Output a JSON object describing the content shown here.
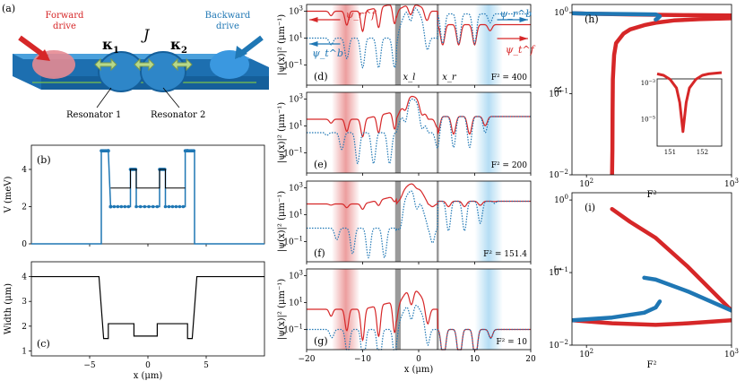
{
  "colors": {
    "red": "#d62728",
    "blue": "#1f77b4",
    "device": "#2e86c8",
    "arrow": "#b7d98a",
    "gray": "#9a9a9a"
  },
  "schematic": {
    "panel": "(a)",
    "forward_label_1": "Forward",
    "forward_label_2": "drive",
    "backward_label_1": "Backward",
    "backward_label_2": "drive",
    "kappa1": "κ",
    "kappa1_sub": "1",
    "coupling": "J",
    "kappa2": "κ",
    "kappa2_sub": "2",
    "res1": "Resonator 1",
    "res2": "Resonator 2"
  },
  "chart_data": [
    {
      "type": "line",
      "panel": "(b)",
      "ylabel": "V (meV)",
      "xlim": [
        -10,
        10
      ],
      "ylim": [
        0,
        5.3
      ],
      "yticks": [
        "0",
        "2",
        "4"
      ],
      "series": [
        {
          "name": "",
          "color": "blue",
          "style": "markers",
          "x": [
            -10,
            -4,
            -4,
            -3.4,
            -3.4,
            -3.2,
            -3.2,
            -1.5,
            -1.5,
            -1,
            -1,
            1,
            1,
            1.5,
            1.5,
            3.2,
            3.2,
            3.4,
            3.4,
            4,
            4,
            10
          ],
          "y": [
            0,
            0,
            5,
            5,
            5,
            2,
            2,
            2,
            4,
            4,
            2,
            2,
            4,
            4,
            2,
            2,
            5,
            5,
            5,
            5,
            0,
            0
          ]
        },
        {
          "name": "",
          "color": "black",
          "style": "solid",
          "x": [
            -3.2,
            -1.5,
            -1.5,
            -1,
            -1,
            1,
            1,
            1.5,
            1.5,
            3.2
          ],
          "y": [
            3,
            3,
            4,
            4,
            3,
            3,
            4,
            4,
            3,
            3
          ]
        }
      ]
    },
    {
      "type": "line",
      "panel": "(c)",
      "ylabel": "Width (μm)",
      "xlabel": "x (μm)",
      "xlim": [
        -10,
        10
      ],
      "ylim": [
        0.8,
        4.6
      ],
      "xticks": [
        "−5",
        "0",
        "5"
      ],
      "yticks": [
        "1",
        "2",
        "3",
        "4"
      ],
      "series": [
        {
          "name": "",
          "color": "black",
          "x": [
            -10,
            -4.2,
            -3.8,
            -3.4,
            -3.4,
            -2.8,
            -2.8,
            -1.2,
            -1.2,
            0.8,
            0.8,
            1.5,
            1.5,
            3.4,
            3.4,
            3.8,
            4.2,
            10
          ],
          "y": [
            4,
            4,
            1.5,
            1.5,
            2.1,
            2.1,
            2.1,
            2.1,
            1.6,
            1.6,
            2.1,
            2.1,
            2.1,
            2.1,
            1.5,
            1.5,
            4,
            4
          ]
        }
      ]
    },
    {
      "type": "line",
      "panel": "(d)",
      "ylabel": "|ψ(x)|² (μm⁻¹)",
      "ylog": true,
      "xlim": [
        -20,
        20
      ],
      "ylim_exp": [
        -2.5,
        3.5
      ],
      "yticks": [
        "10^{-1}",
        "10^{1}",
        "10^{3}"
      ],
      "annotation": "F² = 400",
      "labels": {
        "psi_r_f": "ψ_r^f",
        "psi_t_b": "ψ_t^b",
        "psi_r_b": "ψ_r^b",
        "psi_t_f": "ψ_t^f",
        "x_l": "x_l",
        "x_r": "x_r"
      },
      "series": [
        {
          "name": "forward",
          "color": "red",
          "style": "solid",
          "left_level": 3,
          "center_peak": 3.5,
          "right_level": 2,
          "osc": 1.5
        },
        {
          "name": "backward",
          "color": "blue",
          "style": "dotted",
          "left_level": 1,
          "center_peak": 3.4,
          "right_level": 2.8,
          "osc": 2.2
        }
      ]
    },
    {
      "type": "line",
      "panel": "(e)",
      "ylabel": "|ψ(x)|² (μm⁻¹)",
      "ylog": true,
      "xlim": [
        -20,
        20
      ],
      "ylim_exp": [
        -2.5,
        3.5
      ],
      "yticks": [
        "10^{-1}",
        "10^{1}",
        "10^{3}"
      ],
      "annotation": "F² = 200",
      "series": [
        {
          "name": "forward",
          "color": "red",
          "style": "solid",
          "left_level": 1.5,
          "center_peak": 3.2,
          "right_level": 1.7,
          "osc": 1.3
        },
        {
          "name": "backward",
          "color": "blue",
          "style": "dotted",
          "left_level": 0.5,
          "center_peak": 3.0,
          "right_level": 1.7,
          "osc": 2.3
        }
      ]
    },
    {
      "type": "line",
      "panel": "(f)",
      "ylabel": "|ψ(x)|² (μm⁻¹)",
      "ylog": true,
      "xlim": [
        -20,
        20
      ],
      "ylim_exp": [
        -2.5,
        3.5
      ],
      "yticks": [
        "10^{-1}",
        "10^{1}",
        "10^{3}"
      ],
      "annotation": "F² = 151.4",
      "series": [
        {
          "name": "forward",
          "color": "red",
          "style": "solid",
          "left_level": 1.8,
          "center_peak": 3.3,
          "right_level": 2.0,
          "osc": 0.4
        },
        {
          "name": "backward",
          "color": "blue",
          "style": "dotted",
          "left_level": 0,
          "center_peak": 2.8,
          "right_level": 2.0,
          "osc": 2.2
        }
      ]
    },
    {
      "type": "line",
      "panel": "(g)",
      "ylabel": "|ψ(x)|² (μm⁻¹)",
      "xlabel": "x (μm)",
      "ylog": true,
      "xlim": [
        -20,
        20
      ],
      "ylim_exp": [
        -2.5,
        3.5
      ],
      "xticks": [
        "−20",
        "−10",
        "0",
        "10",
        "20"
      ],
      "yticks": [
        "10^{-1}",
        "10^{1}",
        "10^{3}"
      ],
      "annotation": "F² = 10",
      "series": [
        {
          "name": "forward",
          "color": "red",
          "style": "solid",
          "left_level": 0.5,
          "center_peak": 2.0,
          "right_level": -1,
          "osc": 2.3
        },
        {
          "name": "backward",
          "color": "blue",
          "style": "dotted",
          "left_level": -1,
          "center_peak": 1.0,
          "right_level": -1,
          "osc": 2.5
        }
      ]
    },
    {
      "type": "line",
      "panel": "(h)",
      "ylabel": "R",
      "xlabel": "F²",
      "xlog": true,
      "ylog": true,
      "xlim_exp": [
        1.9,
        3
      ],
      "ylim_exp": [
        -2,
        0.1
      ],
      "yticks": [
        "10^{-2}",
        "10^{-1}",
        "10^{0}"
      ],
      "xticks": [
        "10^{2}",
        "10^{3}"
      ],
      "series": [
        {
          "name": "",
          "color": "red",
          "x": [
            150,
            151,
            151.4,
            152,
            155,
            160,
            180,
            200,
            250,
            300,
            400,
            600,
            1000
          ],
          "y": [
            0.01,
            0.02,
            0.06,
            0.15,
            0.3,
            0.42,
            0.55,
            0.62,
            0.7,
            0.75,
            0.8,
            0.83,
            0.85
          ]
        },
        {
          "name": "",
          "color": "red",
          "x": [
            80,
            100,
            150,
            200,
            300,
            500,
            1000
          ],
          "y": [
            0.98,
            0.97,
            0.96,
            0.95,
            0.94,
            0.93,
            0.92
          ]
        },
        {
          "name": "",
          "color": "blue",
          "x": [
            80,
            100,
            200,
            300,
            320,
            310,
            300
          ],
          "y": [
            0.98,
            0.97,
            0.96,
            0.95,
            0.9,
            0.85,
            0.82
          ]
        }
      ],
      "inset": {
        "xlim": [
          150.6,
          152.6
        ],
        "ylim_exp": [
          -6.5,
          -2.8
        ],
        "xticks": [
          "151",
          "152"
        ],
        "yticks": [
          "10^{-5}",
          "10^{-3}"
        ],
        "x": [
          150.6,
          150.8,
          151,
          151.2,
          151.3,
          151.4,
          151.5,
          151.6,
          151.8,
          152,
          152.2,
          152.6
        ],
        "y": [
          0.003,
          0.0025,
          0.0015,
          0.0005,
          8e-05,
          2e-06,
          8e-05,
          0.0005,
          0.0015,
          0.0025,
          0.003,
          0.0035
        ]
      }
    },
    {
      "type": "line",
      "panel": "(i)",
      "ylabel": "T",
      "xlabel": "F²",
      "xlog": true,
      "ylog": true,
      "xlim_exp": [
        1.9,
        3
      ],
      "ylim_exp": [
        -2,
        0.1
      ],
      "yticks": [
        "10^{-2}",
        "10^{-1}",
        "10^{0}"
      ],
      "xticks": [
        "10^{2}",
        "10^{3}"
      ],
      "series": [
        {
          "name": "",
          "color": "red",
          "x": [
            150,
            200,
            300,
            500,
            1000
          ],
          "y": [
            0.75,
            0.5,
            0.3,
            0.12,
            0.03
          ]
        },
        {
          "name": "",
          "color": "red",
          "x": [
            80,
            150,
            300,
            500,
            1000
          ],
          "y": [
            0.022,
            0.02,
            0.019,
            0.02,
            0.022
          ]
        },
        {
          "name": "",
          "color": "blue",
          "x": [
            80,
            150,
            250,
            300,
            320
          ],
          "y": [
            0.022,
            0.024,
            0.028,
            0.033,
            0.04
          ]
        },
        {
          "name": "",
          "color": "blue",
          "x": [
            250,
            300,
            500,
            1000
          ],
          "y": [
            0.085,
            0.08,
            0.055,
            0.03
          ]
        }
      ]
    }
  ]
}
